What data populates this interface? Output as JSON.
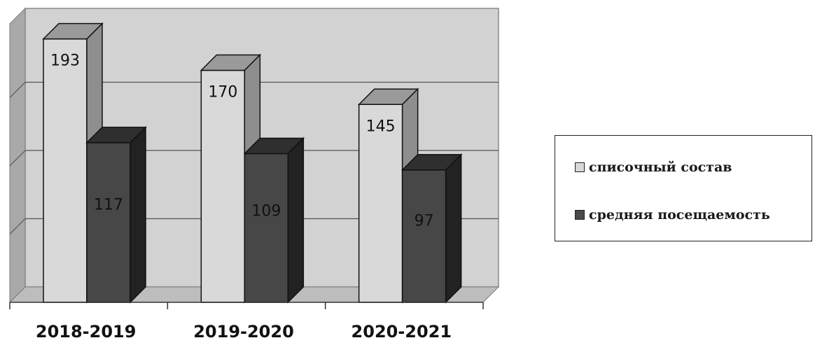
{
  "chart_data": {
    "type": "bar",
    "categories": [
      "2018-2019",
      "2019-2020",
      "2020-2021"
    ],
    "series": [
      {
        "name": "списочный состав",
        "values": [
          193,
          170,
          145
        ],
        "color": "#d9d9d9"
      },
      {
        "name": "средняя посещаемость",
        "values": [
          117,
          109,
          97
        ],
        "color": "#4a4a4a"
      }
    ],
    "title": "",
    "xlabel": "",
    "ylabel": "",
    "ylim": [
      0,
      200
    ],
    "grid": true,
    "legend": "right",
    "three_d": true
  }
}
